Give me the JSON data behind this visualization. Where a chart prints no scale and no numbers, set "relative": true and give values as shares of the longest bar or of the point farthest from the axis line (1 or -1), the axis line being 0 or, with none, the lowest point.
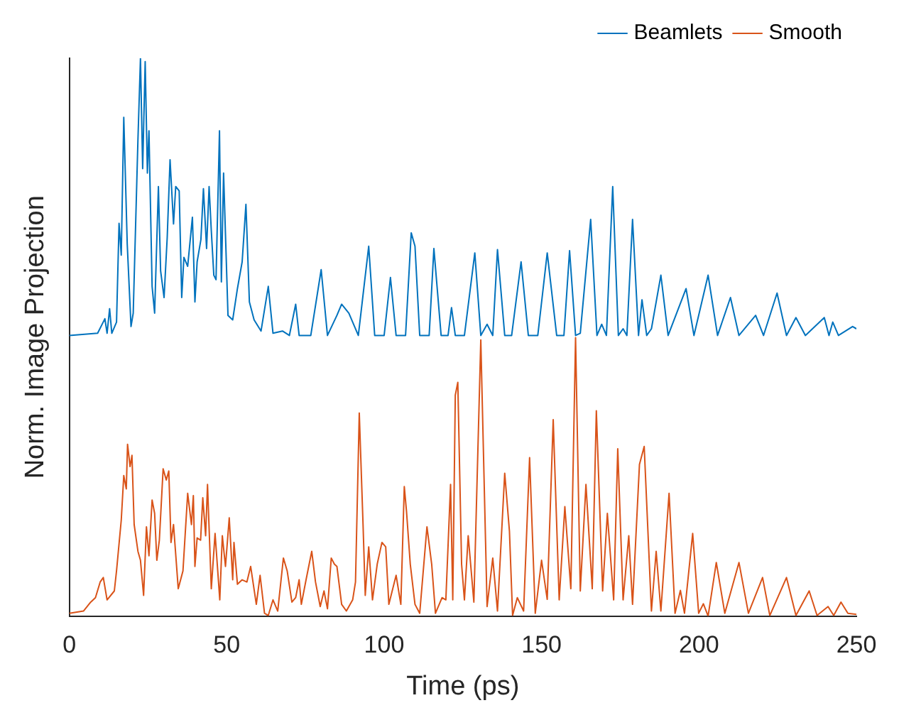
{
  "chart_data": {
    "type": "line",
    "relative": true,
    "xlabel": "Time (ps)",
    "ylabel": "Norm. Image Projection",
    "xlim": [
      0,
      250
    ],
    "xticks": [
      0,
      50,
      100,
      150,
      200,
      250
    ],
    "grid": false,
    "legend": "top right",
    "marker": "none",
    "line_style": "solid",
    "series": [
      {
        "name": "Beamlets",
        "color": "#0072bd",
        "x": [
          0,
          9.0,
          11.3,
          12.0,
          12.8,
          13.5,
          15.0,
          15.8,
          16.5,
          17.3,
          18.4,
          19.6,
          20.3,
          21.8,
          22.6,
          23.3,
          24.1,
          24.8,
          25.3,
          26.3,
          27.1,
          28.3,
          29.0,
          30.1,
          31.1,
          32.0,
          33.1,
          33.8,
          34.9,
          35.7,
          36.4,
          37.6,
          39.1,
          39.9,
          40.6,
          41.8,
          42.6,
          43.6,
          44.4,
          45.1,
          45.9,
          46.6,
          47.7,
          48.3,
          49.0,
          50.4,
          51.9,
          53.4,
          54.9,
          56.1,
          57.2,
          58.7,
          60.9,
          63.2,
          64.7,
          67.7,
          69.9,
          71.9,
          73.0,
          76.7,
          80.0,
          82.0,
          85.0,
          86.5,
          88.8,
          91.8,
          95.1,
          97.0,
          100.0,
          102.0,
          103.8,
          106.8,
          108.6,
          109.8,
          111.3,
          114.3,
          115.8,
          118.1,
          120.3,
          121.4,
          122.6,
          125.5,
          128.8,
          130.7,
          132.7,
          134.5,
          136.0,
          138.3,
          140.5,
          143.5,
          145.8,
          148.8,
          151.8,
          154.8,
          157.1,
          158.9,
          160.8,
          162.3,
          165.6,
          167.6,
          169.1,
          170.6,
          172.6,
          174.4,
          175.9,
          177.1,
          178.9,
          180.8,
          181.9,
          183.4,
          184.9,
          187.9,
          190.2,
          195.9,
          198.4,
          202.9,
          205.9,
          210.0,
          212.7,
          218.0,
          220.5,
          224.8,
          227.8,
          230.8,
          233.8,
          239.8,
          241.3,
          242.5,
          244.3,
          248.8,
          250
        ],
        "values": [
          0.503,
          0.507,
          0.533,
          0.507,
          0.551,
          0.507,
          0.527,
          0.704,
          0.647,
          0.894,
          0.667,
          0.519,
          0.543,
          0.854,
          1,
          0.802,
          0.994,
          0.794,
          0.87,
          0.591,
          0.543,
          0.77,
          0.619,
          0.571,
          0.679,
          0.818,
          0.703,
          0.77,
          0.762,
          0.571,
          0.643,
          0.627,
          0.715,
          0.563,
          0.635,
          0.675,
          0.766,
          0.659,
          0.77,
          0.691,
          0.611,
          0.603,
          0.87,
          0.599,
          0.794,
          0.539,
          0.531,
          0.587,
          0.635,
          0.738,
          0.563,
          0.531,
          0.511,
          0.591,
          0.507,
          0.511,
          0.503,
          0.559,
          0.503,
          0.503,
          0.621,
          0.503,
          0.539,
          0.559,
          0.543,
          0.503,
          0.663,
          0.503,
          0.503,
          0.607,
          0.503,
          0.503,
          0.687,
          0.663,
          0.503,
          0.503,
          0.659,
          0.503,
          0.503,
          0.553,
          0.503,
          0.503,
          0.651,
          0.503,
          0.523,
          0.503,
          0.657,
          0.503,
          0.503,
          0.635,
          0.503,
          0.503,
          0.651,
          0.503,
          0.503,
          0.655,
          0.503,
          0.507,
          0.711,
          0.503,
          0.523,
          0.503,
          0.77,
          0.503,
          0.515,
          0.503,
          0.711,
          0.503,
          0.567,
          0.503,
          0.515,
          0.611,
          0.503,
          0.587,
          0.503,
          0.611,
          0.503,
          0.571,
          0.503,
          0.539,
          0.503,
          0.579,
          0.503,
          0.535,
          0.503,
          0.535,
          0.503,
          0.527,
          0.503,
          0.519,
          0.515
        ]
      },
      {
        "name": "Smooth",
        "color": "#d95319",
        "x": [
          0,
          4.5,
          6.8,
          8.3,
          9.8,
          10.8,
          12.0,
          14.3,
          15.0,
          16.5,
          17.3,
          18.1,
          18.5,
          19.3,
          19.9,
          20.6,
          21.8,
          22.6,
          23.6,
          24.5,
          25.3,
          26.3,
          27.1,
          27.8,
          28.6,
          29.8,
          30.8,
          31.6,
          32.3,
          33.1,
          34.6,
          36.1,
          37.6,
          38.8,
          39.4,
          39.9,
          40.6,
          41.7,
          42.4,
          43.3,
          43.9,
          45.1,
          46.3,
          47.8,
          48.6,
          49.6,
          50.8,
          51.9,
          52.3,
          53.4,
          54.9,
          56.4,
          57.6,
          59.4,
          60.6,
          62.0,
          63.2,
          64.7,
          66.2,
          68.0,
          69.2,
          70.7,
          71.9,
          73.0,
          73.7,
          75.2,
          77.0,
          78.2,
          79.7,
          80.9,
          82.0,
          83.2,
          84.2,
          85.0,
          86.5,
          88.0,
          90.0,
          90.9,
          92.1,
          93.3,
          94.0,
          95.1,
          96.3,
          97.8,
          99.3,
          100.5,
          101.5,
          103.8,
          105.3,
          106.4,
          107.1,
          108.3,
          109.8,
          111.3,
          113.6,
          115.1,
          116.3,
          118.4,
          119.6,
          121.1,
          121.8,
          122.6,
          123.4,
          124.6,
          125.5,
          126.7,
          128.5,
          130.7,
          132.7,
          134.5,
          136.0,
          138.3,
          139.8,
          140.8,
          142.3,
          144.3,
          146.2,
          148.0,
          150.0,
          151.8,
          153.7,
          155.6,
          157.4,
          159.3,
          160.8,
          162.3,
          164.1,
          166.1,
          167.4,
          169.4,
          170.9,
          172.9,
          174.2,
          175.9,
          177.7,
          178.9,
          181.1,
          182.6,
          184.9,
          186.4,
          187.9,
          190.5,
          192.4,
          194.1,
          195.4,
          198.0,
          199.9,
          201.4,
          202.9,
          205.5,
          208.2,
          212.7,
          215.7,
          220.2,
          222.5,
          227.8,
          230.8,
          235.0,
          237.5,
          241.0,
          242.8,
          245.1,
          247.3,
          250.0
        ],
        "values": [
          0.005,
          0.009,
          0.025,
          0.033,
          0.061,
          0.069,
          0.029,
          0.045,
          0.081,
          0.172,
          0.252,
          0.228,
          0.308,
          0.268,
          0.288,
          0.164,
          0.116,
          0.1,
          0.037,
          0.16,
          0.108,
          0.208,
          0.184,
          0.1,
          0.136,
          0.264,
          0.244,
          0.26,
          0.132,
          0.164,
          0.049,
          0.081,
          0.22,
          0.164,
          0.216,
          0.089,
          0.14,
          0.136,
          0.212,
          0.144,
          0.236,
          0.049,
          0.148,
          0.029,
          0.144,
          0.089,
          0.176,
          0.065,
          0.132,
          0.057,
          0.065,
          0.061,
          0.089,
          0.021,
          0.073,
          0.005,
          0.001,
          0.029,
          0.009,
          0.104,
          0.081,
          0.025,
          0.033,
          0.065,
          0.021,
          0.065,
          0.116,
          0.061,
          0.017,
          0.045,
          0.013,
          0.104,
          0.093,
          0.089,
          0.021,
          0.009,
          0.029,
          0.061,
          0.364,
          0.164,
          0.037,
          0.124,
          0.029,
          0.093,
          0.132,
          0.124,
          0.021,
          0.073,
          0.021,
          0.232,
          0.188,
          0.093,
          0.021,
          0.005,
          0.16,
          0.093,
          0.005,
          0.033,
          0.029,
          0.236,
          0.029,
          0.396,
          0.419,
          0.093,
          0.029,
          0.144,
          0.025,
          0.495,
          0.017,
          0.104,
          0.009,
          0.256,
          0.152,
          0.001,
          0.033,
          0.009,
          0.284,
          0.005,
          0.1,
          0.03,
          0.352,
          0.029,
          0.196,
          0.049,
          0.499,
          0.045,
          0.236,
          0.049,
          0.368,
          0.045,
          0.184,
          0.029,
          0.3,
          0.029,
          0.144,
          0.021,
          0.272,
          0.304,
          0.009,
          0.116,
          0.009,
          0.22,
          0.005,
          0.046,
          0.005,
          0.148,
          0.005,
          0.022,
          0,
          0.096,
          0.005,
          0.096,
          0.005,
          0.069,
          0.001,
          0.069,
          0.001,
          0.045,
          0.001,
          0.017,
          0.001,
          0.025,
          0.005,
          0.003
        ]
      }
    ]
  }
}
